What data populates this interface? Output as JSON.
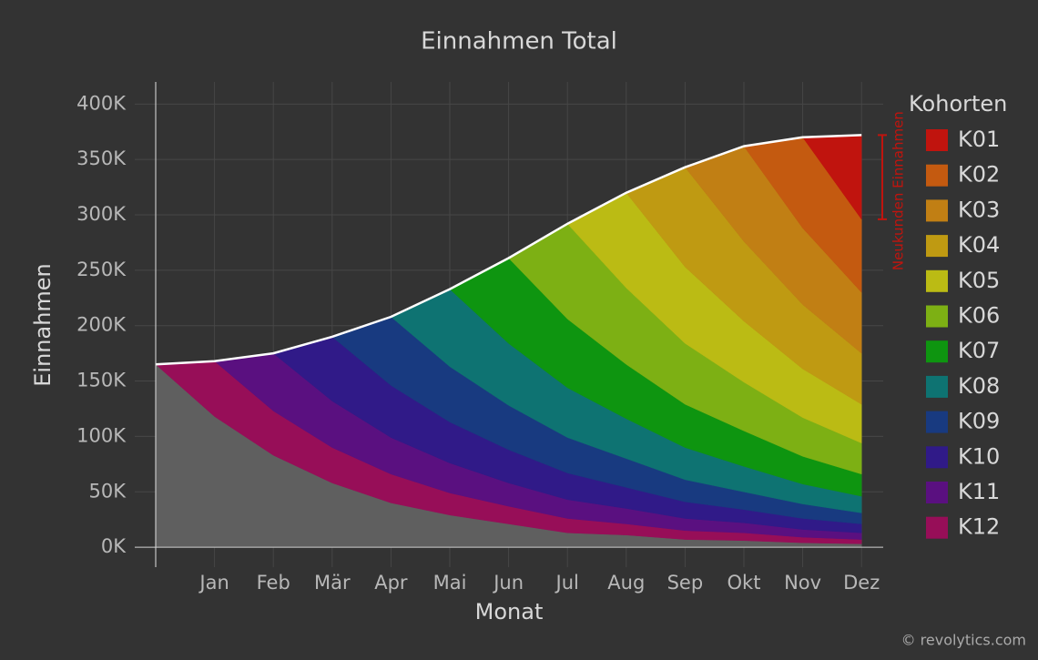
{
  "chart_data": {
    "type": "stacked_area",
    "title": "Einnahmen Total",
    "x_label": "Monat",
    "y_label": "Einnahmen",
    "legend_title": "Kohorten",
    "annotation": "Neukunden Einnahmen",
    "credit": "© revolytics.com",
    "categories": [
      null,
      "Jan",
      "Feb",
      "Mär",
      "Apr",
      "Mai",
      "Jun",
      "Jul",
      "Aug",
      "Sep",
      "Okt",
      "Nov",
      "Dez"
    ],
    "ylim": [
      -18000,
      420000
    ],
    "yticks": [
      {
        "value": 0,
        "label": "0K"
      },
      {
        "value": 50000,
        "label": "50K"
      },
      {
        "value": 100000,
        "label": "100K"
      },
      {
        "value": 150000,
        "label": "150K"
      },
      {
        "value": 200000,
        "label": "200K"
      },
      {
        "value": 250000,
        "label": "250K"
      },
      {
        "value": 300000,
        "label": "300K"
      },
      {
        "value": 350000,
        "label": "350K"
      },
      {
        "value": 400000,
        "label": "400K"
      }
    ],
    "grid": true,
    "legend": "right",
    "series": [
      {
        "name": "K01",
        "color": "#c0140e",
        "values": [
          null,
          null,
          null,
          null,
          null,
          null,
          null,
          null,
          null,
          null,
          null,
          null,
          76000
        ]
      },
      {
        "name": "K02",
        "color": "#c45a10",
        "values": [
          null,
          null,
          null,
          null,
          null,
          null,
          null,
          null,
          null,
          null,
          null,
          82000,
          66000
        ]
      },
      {
        "name": "K03",
        "color": "#c17f14",
        "values": [
          null,
          null,
          null,
          null,
          null,
          null,
          null,
          null,
          null,
          null,
          86000,
          69000,
          55000
        ]
      },
      {
        "name": "K04",
        "color": "#bf9a12",
        "values": [
          null,
          null,
          null,
          null,
          null,
          null,
          null,
          null,
          null,
          90000,
          72000,
          58000,
          46000
        ]
      },
      {
        "name": "K05",
        "color": "#bbbb14",
        "values": [
          null,
          null,
          null,
          null,
          null,
          null,
          null,
          null,
          86000,
          69000,
          55000,
          44000,
          35000
        ]
      },
      {
        "name": "K06",
        "color": "#7db014",
        "values": [
          null,
          null,
          null,
          null,
          null,
          null,
          null,
          86000,
          69000,
          55000,
          44000,
          35000,
          28000
        ]
      },
      {
        "name": "K07",
        "color": "#0e9510",
        "values": [
          null,
          null,
          null,
          null,
          null,
          null,
          77000,
          62000,
          49000,
          39000,
          32000,
          25000,
          20000
        ]
      },
      {
        "name": "K08",
        "color": "#0e7372",
        "values": [
          null,
          null,
          null,
          null,
          null,
          70000,
          56000,
          45000,
          36000,
          29000,
          23000,
          18000,
          15000
        ]
      },
      {
        "name": "K09",
        "color": "#183a80",
        "values": [
          null,
          null,
          null,
          null,
          62000,
          50000,
          40000,
          32000,
          26000,
          20000,
          16000,
          13000,
          10000
        ]
      },
      {
        "name": "K10",
        "color": "#301a88",
        "values": [
          null,
          null,
          null,
          58000,
          47000,
          37000,
          30000,
          24000,
          19000,
          15000,
          12000,
          10000,
          8000
        ]
      },
      {
        "name": "K11",
        "color": "#5a1080",
        "values": [
          null,
          null,
          52000,
          42000,
          33000,
          27000,
          21000,
          17000,
          14000,
          11000,
          9000,
          7000,
          6000
        ]
      },
      {
        "name": "K12",
        "color": "#970e58",
        "values": [
          null,
          50000,
          40000,
          32000,
          26000,
          20000,
          16000,
          13000,
          10000,
          8000,
          7000,
          5000,
          4000
        ]
      },
      {
        "color": "#5f5f5f",
        "values": [
          165000,
          118000,
          83000,
          58000,
          40000,
          29000,
          21000,
          13000,
          11000,
          7000,
          6000,
          4000,
          3000
        ]
      }
    ]
  }
}
